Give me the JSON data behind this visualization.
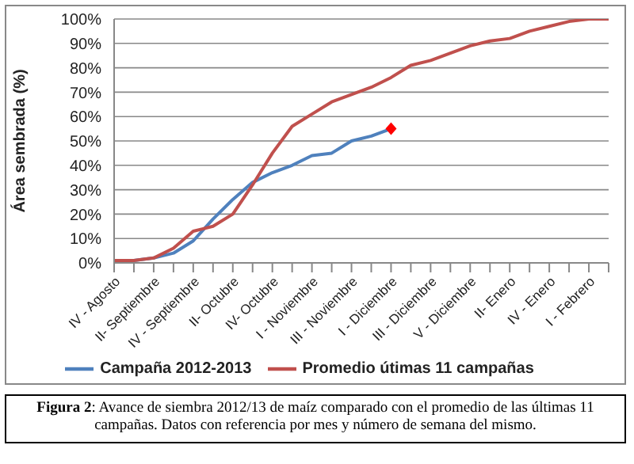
{
  "chart_data": {
    "type": "line",
    "ylabel": "Área sembrada (%)",
    "categories": [
      "IV - Agosto",
      null,
      "II- Septiembre",
      null,
      "IV - Septiembre",
      null,
      "II- Octubre",
      null,
      "IV- Octubre",
      null,
      "I - Noviembre",
      null,
      "III - Noviembre",
      null,
      "I - Diciembre",
      null,
      "III - Diciembre",
      null,
      "V - Diciembre",
      null,
      "II- Enero",
      null,
      "IV - Enero",
      null,
      "I - Febrero",
      null
    ],
    "series": [
      {
        "name": "Campaña 2012-2013",
        "color": "#4f81bd",
        "values": [
          1,
          1,
          2,
          4,
          9,
          18,
          26,
          33,
          37,
          40,
          44,
          45,
          50,
          52,
          55,
          null,
          null,
          null,
          null,
          null,
          null,
          null,
          null,
          null,
          null,
          null
        ]
      },
      {
        "name": "Promedio útimas 11 campañas",
        "color": "#c0504d",
        "values": [
          1,
          1,
          2,
          6,
          13,
          15,
          20,
          32,
          45,
          56,
          61,
          66,
          69,
          72,
          76,
          81,
          83,
          86,
          89,
          91,
          92,
          95,
          97,
          99,
          100,
          100
        ]
      },
      {
        "type": "scatter",
        "color": "#ff0000",
        "marker": "diamond",
        "x": [
          "I - Diciembre"
        ],
        "values": [
          55
        ]
      }
    ],
    "ylim": [
      0,
      100
    ],
    "yticks": [
      {
        "value": 0,
        "label": "0%"
      },
      {
        "value": 10,
        "label": "10%"
      },
      {
        "value": 20,
        "label": "20%"
      },
      {
        "value": 30,
        "label": "30%"
      },
      {
        "value": 40,
        "label": "40%"
      },
      {
        "value": 50,
        "label": "50%"
      },
      {
        "value": 60,
        "label": "60%"
      },
      {
        "value": 70,
        "label": "70%"
      },
      {
        "value": 80,
        "label": "80%"
      },
      {
        "value": 90,
        "label": "90%"
      },
      {
        "value": 100,
        "label": "100%"
      }
    ],
    "grid": "y",
    "legend": "bottom",
    "annotations": [
      "Figura 2: Avance de siembra 2012/13 de maíz comparado con el promedio de las últimas 11 campañas. Datos con referencia por mes y número de semana del mismo."
    ]
  }
}
